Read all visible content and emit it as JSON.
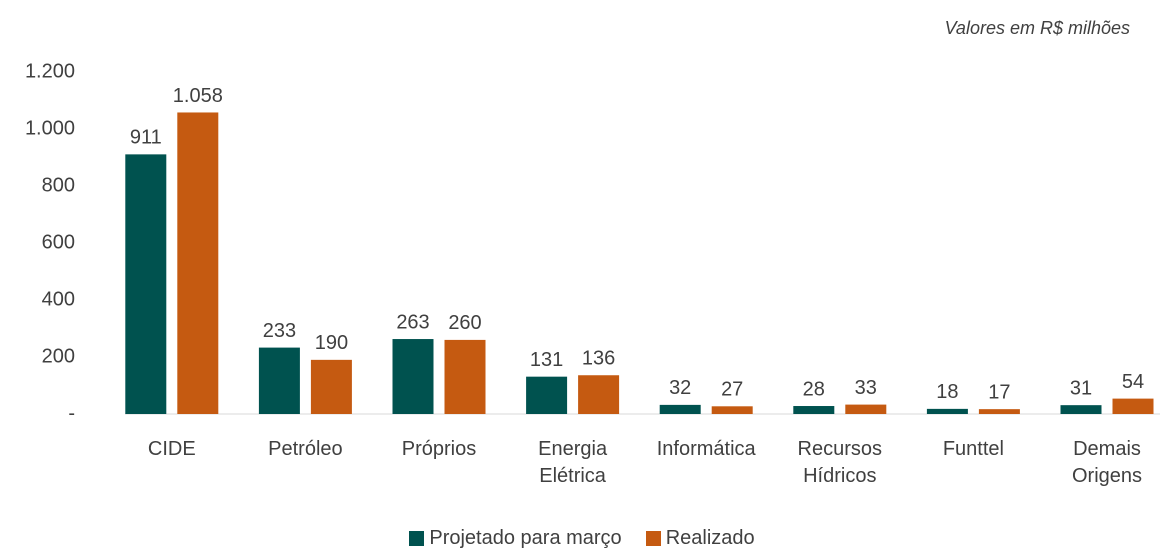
{
  "chart_data": {
    "type": "bar",
    "subtitle": "Valores em R$ milhões",
    "categories": [
      "CIDE",
      "Petróleo",
      "Próprios",
      "Energia Elétrica",
      "Informática",
      "Recursos Hídricos",
      "Funttel",
      "Demais Origens"
    ],
    "series": [
      {
        "name": "Projetado para março",
        "color": "#00524f",
        "values": [
          911,
          233,
          263,
          131,
          32,
          28,
          18,
          31
        ]
      },
      {
        "name": "Realizado",
        "color": "#c55a11",
        "values": [
          1058,
          190,
          260,
          136,
          27,
          33,
          17,
          54
        ],
        "value_labels": [
          "1.058",
          "190",
          "260",
          "136",
          "27",
          "33",
          "17",
          "54"
        ]
      }
    ],
    "ylim": [
      0,
      1200
    ],
    "yticks": [
      {
        "value": 0,
        "label": "-"
      },
      200,
      400,
      600,
      800,
      {
        "value": 1000,
        "label": "1.000"
      },
      {
        "value": 1200,
        "label": "1.200"
      }
    ],
    "grid": false
  }
}
